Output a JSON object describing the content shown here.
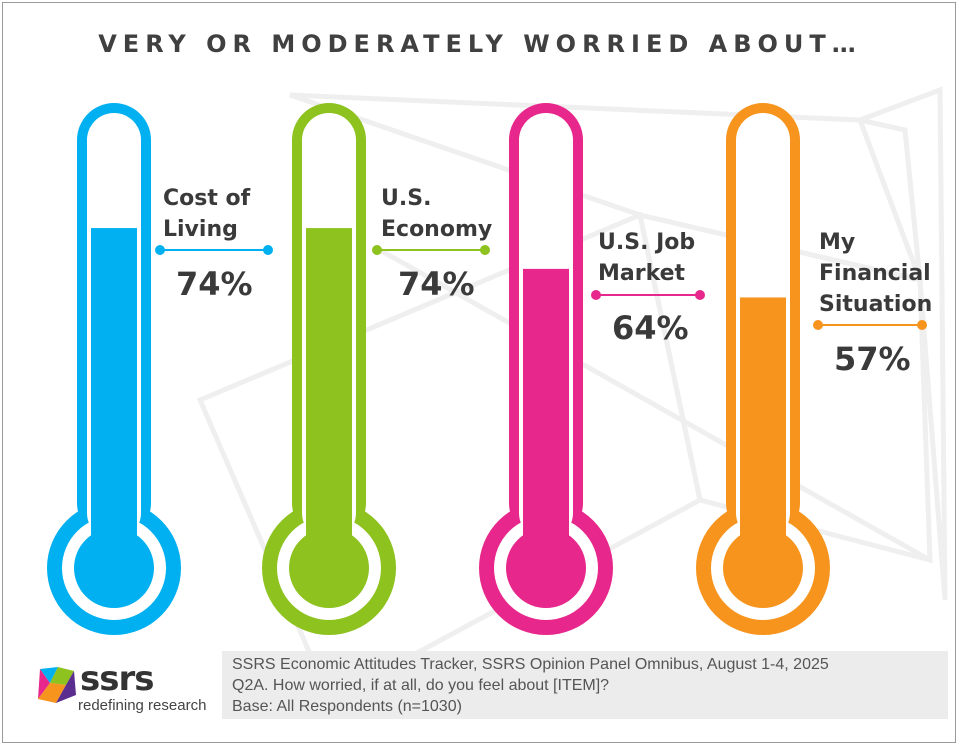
{
  "title": "VERY OR MODERATELY WORRIED ABOUT…",
  "colors": {
    "blue": "#00b0f0",
    "green": "#8dc21f",
    "pink": "#e7278b",
    "orange": "#f7941d",
    "text": "#3a3a3a"
  },
  "chart_data": {
    "type": "bar",
    "categories": [
      "Cost of\nLiving",
      "U.S.\nEconomy",
      "U.S. Job\nMarket",
      "My\nFinancial\nSituation"
    ],
    "values": [
      74,
      74,
      64,
      57
    ],
    "value_labels": [
      "74%",
      "74%",
      "64%",
      "57%"
    ],
    "series_colors": [
      "#00b0f0",
      "#8dc21f",
      "#e7278b",
      "#f7941d"
    ],
    "ylim": [
      0,
      100
    ],
    "style": "thermometer"
  },
  "logo": {
    "word": "ssrs",
    "tagline": "redefining research"
  },
  "source": {
    "line1": "SSRS Economic Attitudes Tracker, SSRS Opinion Panel Omnibus, August 1-4, 2025",
    "line2": "Q2A. How worried, if at all, do you feel about [ITEM]?",
    "line3": "Base: All Respondents (n=1030)"
  }
}
